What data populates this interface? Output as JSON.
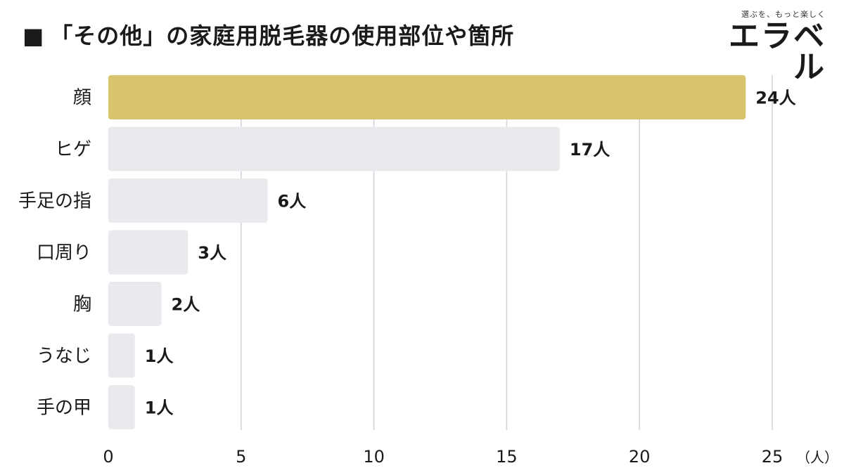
{
  "title": "「その他」の家庭用脱毛器の使用部位や箇所",
  "title_mark": "■",
  "brand": {
    "tagline": "選ぶを、もっと楽しく",
    "name": "エラベル"
  },
  "colors": {
    "highlight": "#d9c46d",
    "bar": "#e8eaee",
    "grid": "#cfd2d6",
    "text": "#1a1a1a"
  },
  "chart_data": {
    "type": "bar",
    "orientation": "horizontal",
    "title": "「その他」の家庭用脱毛器の使用部位や箇所",
    "categories": [
      "顔",
      "ヒゲ",
      "手足の指",
      "口周り",
      "胸",
      "うなじ",
      "手の甲"
    ],
    "values": [
      24,
      17,
      6,
      3,
      2,
      1,
      1
    ],
    "value_labels": [
      "24人",
      "17人",
      "6人",
      "3人",
      "2人",
      "1人",
      "1人"
    ],
    "xlim": [
      0,
      25
    ],
    "xticks": [
      0,
      5,
      10,
      15,
      20,
      25
    ],
    "x_unit": "（人）",
    "grid": true,
    "highlight_index": 0
  }
}
